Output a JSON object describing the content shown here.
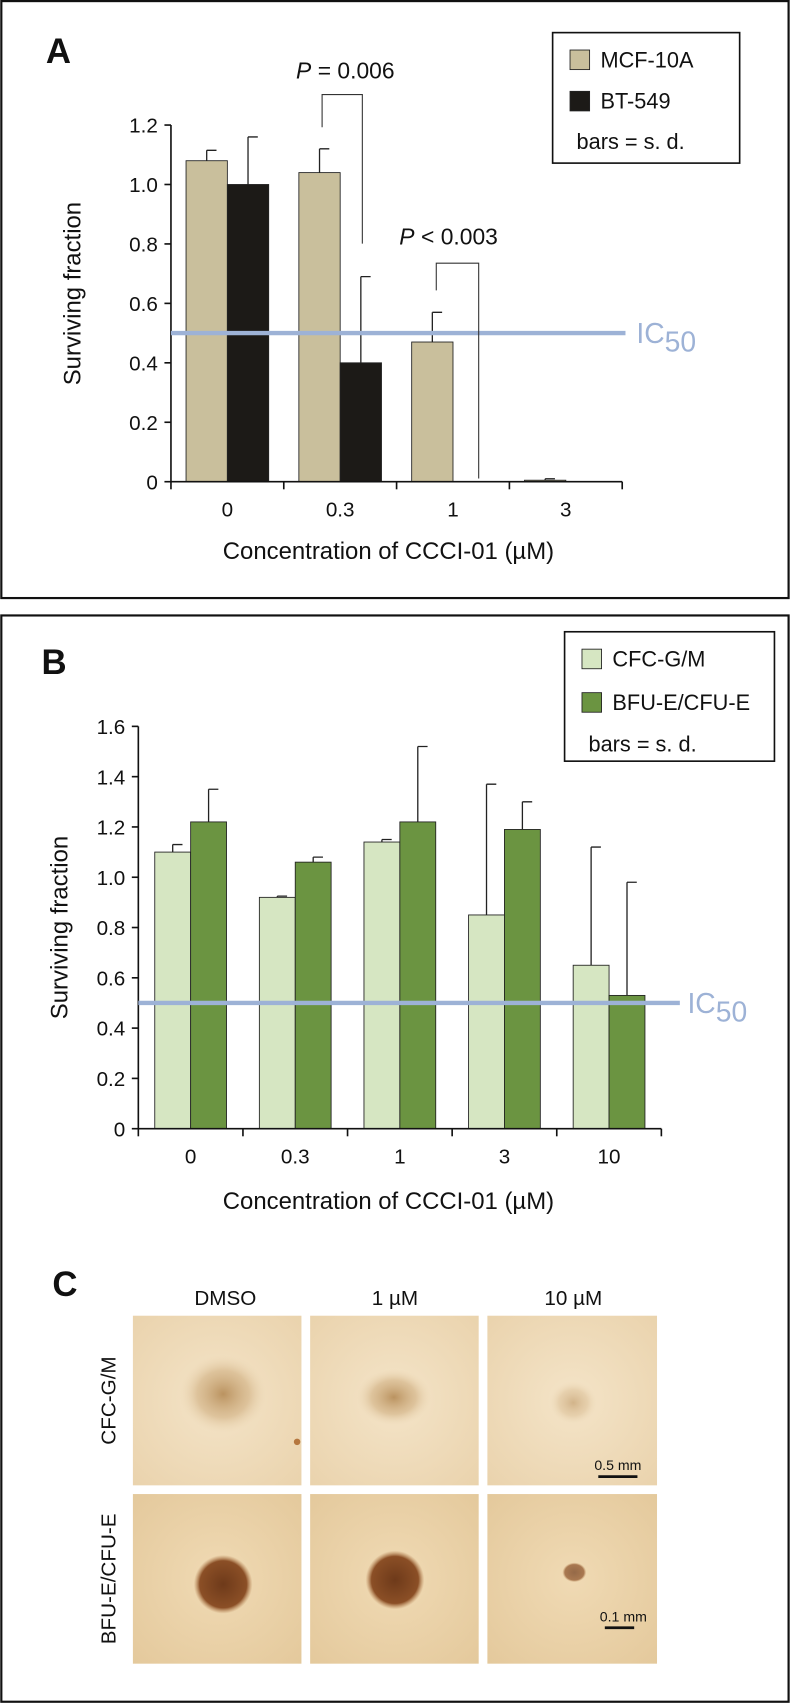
{
  "chart_data": [
    {
      "type": "bar",
      "panel_label": "A",
      "categories": [
        "0",
        "0.3",
        "1",
        "3"
      ],
      "series": [
        {
          "name": "MCF-10A",
          "color": "#c9bf9c",
          "values": [
            1.08,
            1.04,
            0.47,
            0.005
          ],
          "errors": [
            0.035,
            0.08,
            0.1,
            0.005
          ]
        },
        {
          "name": "BT-549",
          "color": "#1c1a17",
          "values": [
            1.0,
            0.4,
            0,
            0
          ],
          "errors": [
            0.16,
            0.29,
            0,
            0
          ]
        }
      ],
      "legend_note": "bars = s. d.",
      "xlabel": "Concentration of CCCI-01 (µM)",
      "ylabel": "Surviving fraction",
      "ylim": [
        0,
        1.2
      ],
      "yticks": [
        0,
        0.2,
        0.4,
        0.6,
        0.8,
        {
          "value": 1,
          "label": "1.0"
        },
        1.2
      ],
      "reference_line": {
        "value": 0.5,
        "label": "IC",
        "label_sub": "50",
        "color": "#9db2d6"
      },
      "annotations": [
        {
          "prefix": "P",
          "text": "= 0.006"
        },
        {
          "prefix": "P",
          "text": "< 0.003"
        }
      ]
    },
    {
      "type": "bar",
      "panel_label": "B",
      "categories": [
        "0",
        "0.3",
        "1",
        "3",
        "10"
      ],
      "series": [
        {
          "name": "CFC-G/M",
          "color": "#d6e6c2",
          "values": [
            1.1,
            0.92,
            1.14,
            0.85,
            0.65
          ],
          "errors": [
            0.03,
            0.005,
            0.01,
            0.52,
            0.47
          ]
        },
        {
          "name": "BFU-E/CFU-E",
          "color": "#6b9441",
          "values": [
            1.22,
            1.06,
            1.22,
            1.19,
            0.53
          ],
          "errors": [
            0.13,
            0.02,
            0.3,
            0.11,
            0.45
          ]
        }
      ],
      "legend_note": "bars = s. d.",
      "xlabel": "Concentration of CCCI-01 (µM)",
      "ylabel": "Surviving fraction",
      "ylim": [
        0,
        1.6
      ],
      "yticks": [
        0,
        0.2,
        0.4,
        0.6,
        0.8,
        {
          "value": 1,
          "label": "1.0"
        },
        1.2,
        1.4,
        1.6
      ],
      "reference_line": {
        "value": 0.5,
        "label": "IC",
        "label_sub": "50",
        "color": "#9db2d6"
      },
      "annotations": []
    }
  ],
  "panel_c": {
    "label": "C",
    "columns": [
      "DMSO",
      "1 µM",
      "10 µM"
    ],
    "rows": [
      "CFC-G/M",
      "BFU-E/CFU-E"
    ],
    "scale_bars": [
      "0.5 mm",
      "0.1 mm"
    ]
  }
}
